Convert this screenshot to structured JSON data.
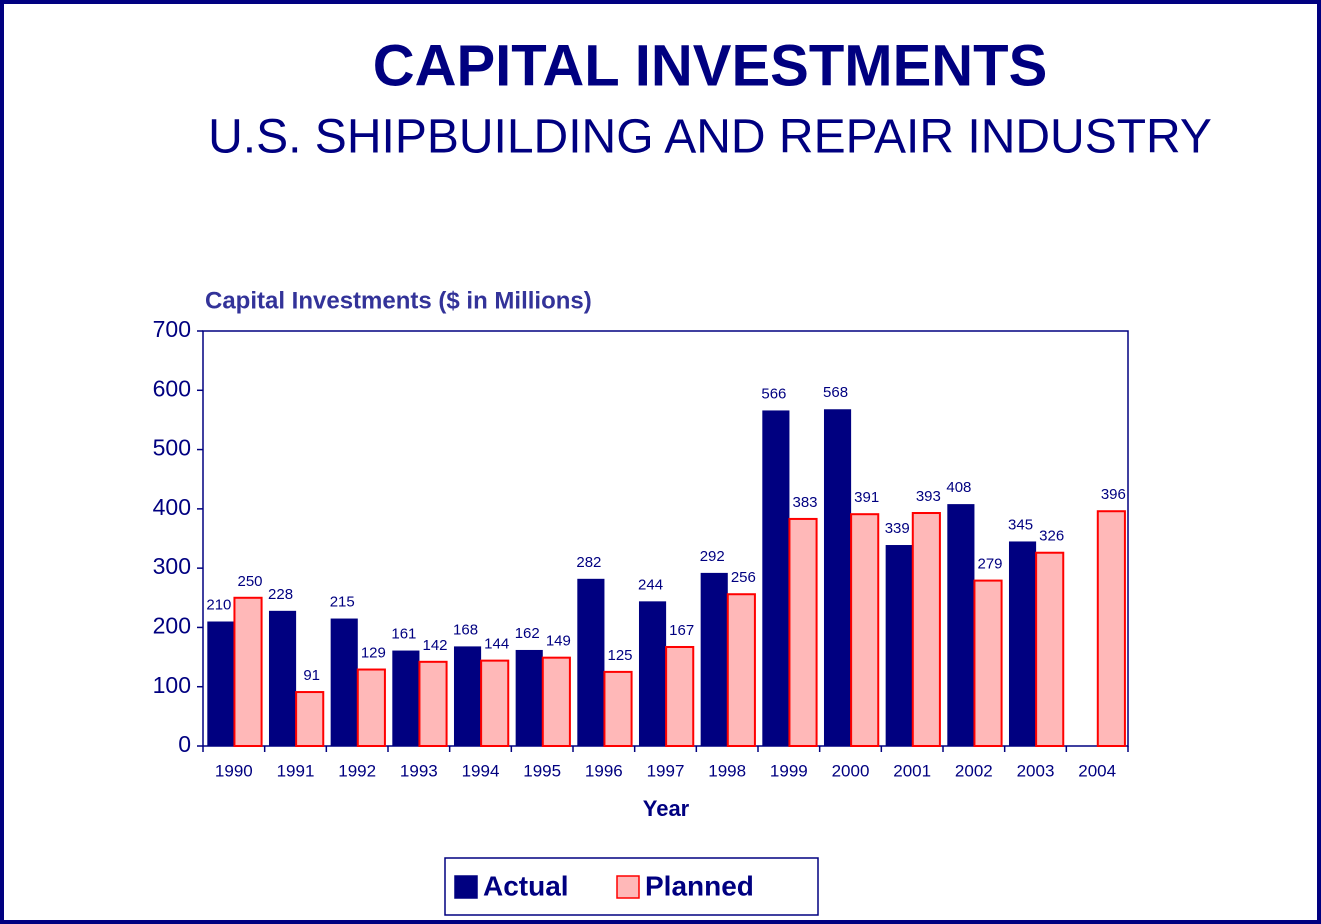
{
  "chart_data": {
    "type": "bar",
    "title": "CAPITAL INVESTMENTS",
    "subtitle": "U.S. SHIPBUILDING AND REPAIR INDUSTRY",
    "y_label": "Capital Investments ($ in Millions)",
    "x_label": "Year",
    "categories": [
      "1990",
      "1991",
      "1992",
      "1993",
      "1994",
      "1995",
      "1996",
      "1997",
      "1998",
      "1999",
      "2000",
      "2001",
      "2002",
      "2003",
      "2004"
    ],
    "series": [
      {
        "name": "Actual",
        "color": "#000080",
        "values": [
          210,
          228,
          215,
          161,
          168,
          162,
          282,
          244,
          292,
          566,
          568,
          339,
          408,
          345,
          null
        ]
      },
      {
        "name": "Planned",
        "color": "#ffb8b8",
        "edge": "#ff0000",
        "values": [
          250,
          91,
          129,
          142,
          144,
          149,
          125,
          167,
          256,
          383,
          391,
          393,
          279,
          326,
          396
        ]
      }
    ],
    "ylim": [
      0,
      700
    ],
    "yticks": [
      0,
      100,
      200,
      300,
      400,
      500,
      600,
      700
    ],
    "legend": "bottom"
  }
}
